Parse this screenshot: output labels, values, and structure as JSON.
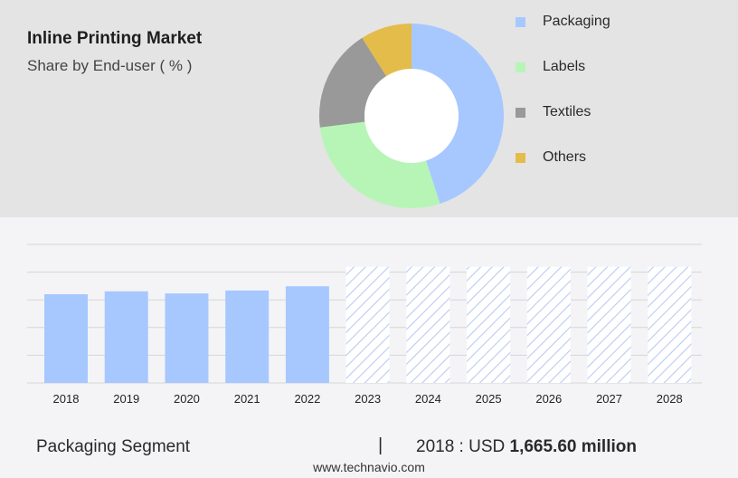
{
  "header": {
    "title": "Inline Printing Market",
    "subtitle": "Share by End-user ( % )"
  },
  "chart_data": [
    {
      "type": "pie",
      "variant": "donut",
      "labels": [
        "Packaging",
        "Labels",
        "Textiles",
        "Others"
      ],
      "values": [
        45,
        28,
        18,
        9
      ],
      "colors": [
        "#a6c8ff",
        "#b6f5b6",
        "#999999",
        "#e4bc4a"
      ],
      "legend_position": "right"
    },
    {
      "type": "bar",
      "categories": [
        "2018",
        "2019",
        "2020",
        "2021",
        "2022",
        "2023",
        "2024",
        "2025",
        "2026",
        "2027",
        "2028"
      ],
      "values": [
        1665.6,
        1720,
        1680,
        1735,
        1815,
        2180,
        2180,
        2180,
        2180,
        2180,
        2180
      ],
      "forecast": [
        false,
        false,
        false,
        false,
        false,
        true,
        true,
        true,
        true,
        true,
        true
      ],
      "ylim": [
        0,
        2600
      ],
      "grid": true,
      "colors": {
        "actual": "#a6c8ff",
        "forecast_hatch": "#b8ccf2"
      }
    }
  ],
  "footer": {
    "segment": "Packaging Segment",
    "separator": "|",
    "year_label": "2018 : USD ",
    "value": "1,665.60 million",
    "site": "www.technavio.com"
  }
}
